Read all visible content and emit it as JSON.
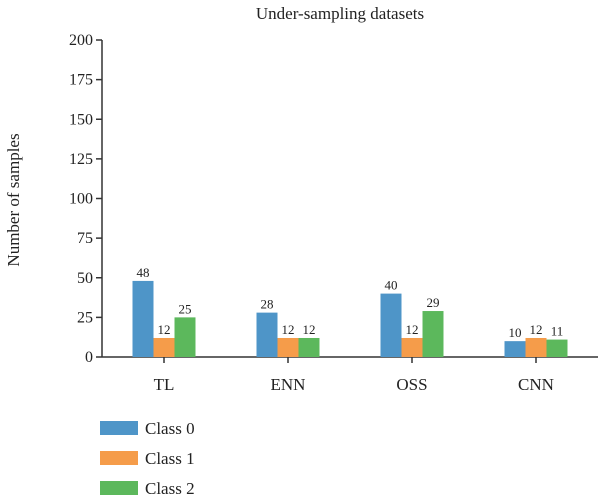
{
  "chart_data": {
    "type": "bar",
    "title": "Under-sampling datasets",
    "xlabel": "",
    "ylabel": "Number of samples",
    "ylim": [
      0,
      200
    ],
    "yticks": [
      0,
      25,
      50,
      75,
      100,
      125,
      150,
      175,
      200
    ],
    "categories": [
      "TL",
      "ENN",
      "OSS",
      "CNN"
    ],
    "series": [
      {
        "name": "Class 0",
        "color": "#4e95c8",
        "values": [
          48,
          28,
          40,
          10
        ]
      },
      {
        "name": "Class 1",
        "color": "#f59c4a",
        "values": [
          12,
          12,
          12,
          12
        ]
      },
      {
        "name": "Class 2",
        "color": "#5cb85c",
        "values": [
          25,
          12,
          29,
          11
        ]
      }
    ],
    "grid": false,
    "legend_position": "bottom-left"
  }
}
